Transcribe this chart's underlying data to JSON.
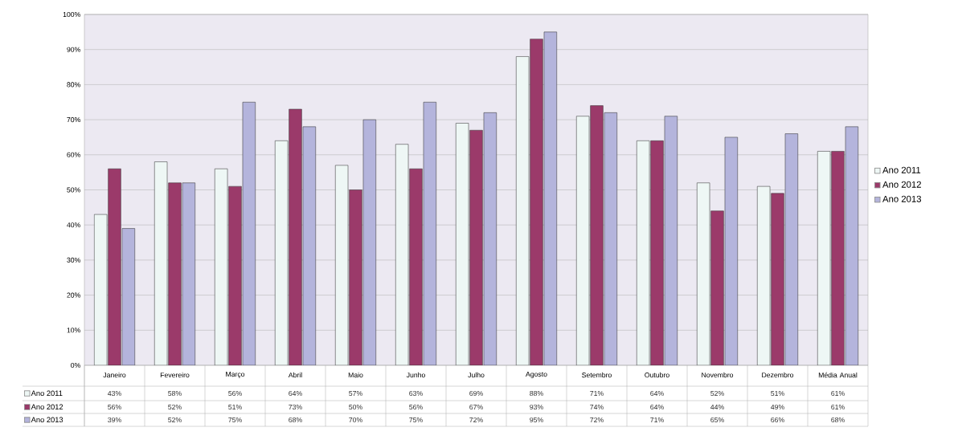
{
  "chart_data": {
    "type": "bar",
    "categories": [
      "Janeiro",
      "Fevereiro",
      "Março",
      "Abril",
      "Maio",
      "Junho",
      "Julho",
      "Agosto",
      "Setembro",
      "Outubro",
      "Novembro",
      "Dezembro",
      "Média Anual"
    ],
    "series": [
      {
        "name": "Ano 2011",
        "color": "#eef7f5",
        "values": [
          43,
          58,
          56,
          64,
          57,
          63,
          69,
          88,
          71,
          64,
          52,
          51,
          61
        ],
        "value_labels": [
          "43%",
          "58%",
          "56%",
          "64%",
          "57%",
          "63%",
          "69%",
          "88%",
          "71%",
          "64%",
          "52%",
          "51%",
          "61%"
        ]
      },
      {
        "name": "Ano 2012",
        "color": "#9b3a6a",
        "values": [
          56,
          52,
          51,
          73,
          50,
          56,
          67,
          93,
          74,
          64,
          44,
          49,
          61
        ],
        "value_labels": [
          "56%",
          "52%",
          "51%",
          "73%",
          "50%",
          "56%",
          "67%",
          "93%",
          "74%",
          "64%",
          "44%",
          "49%",
          "61%"
        ]
      },
      {
        "name": "Ano 2013",
        "color": "#b4b4dc",
        "values": [
          39,
          52,
          75,
          68,
          70,
          75,
          72,
          95,
          72,
          71,
          65,
          66,
          68
        ],
        "value_labels": [
          "39%",
          "52%",
          "75%",
          "68%",
          "70%",
          "75%",
          "72%",
          "95%",
          "72%",
          "71%",
          "65%",
          "66%",
          "68%"
        ]
      }
    ],
    "ylim": [
      0,
      100
    ],
    "yticks": [
      {
        "value": 0,
        "label": "0%"
      },
      {
        "value": 10,
        "label": "10%"
      },
      {
        "value": 20,
        "label": "20%"
      },
      {
        "value": 30,
        "label": "30%"
      },
      {
        "value": 40,
        "label": "40%"
      },
      {
        "value": 50,
        "label": "50%"
      },
      {
        "value": 60,
        "label": "60%"
      },
      {
        "value": 70,
        "label": "70%"
      },
      {
        "value": 80,
        "label": "80%"
      },
      {
        "value": 90,
        "label": "90%"
      },
      {
        "value": 100,
        "label": "100%"
      }
    ],
    "grid": "y",
    "legend": "right"
  }
}
